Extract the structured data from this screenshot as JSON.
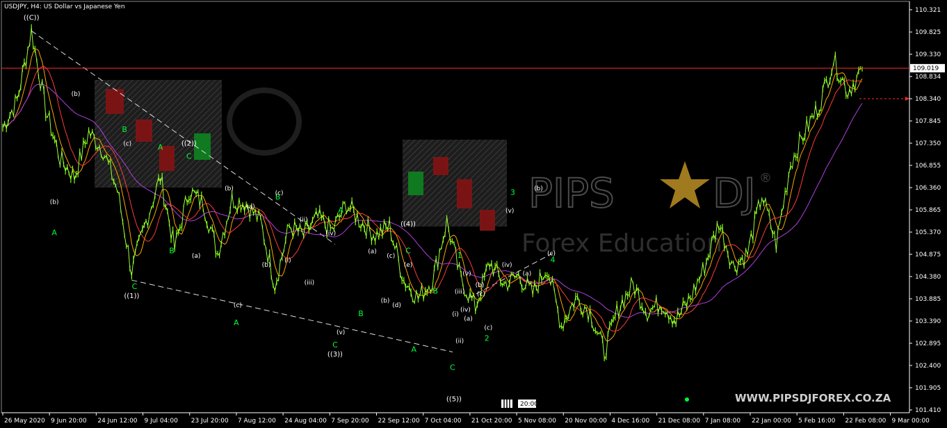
{
  "chart_title": "USDJPY, H4:  US Dollar vs Japanese Yen",
  "watermark": {
    "brand_left": "PIPS",
    "brand_right": "DJ",
    "subtitle": "Forex Education",
    "registered": "®"
  },
  "website": "WWW.PIPSDJFOREX.CO.ZA",
  "time_marker": "20:00",
  "colors": {
    "background": "#000000",
    "candles": "#7fff00",
    "ma_fast": "#ffa500",
    "ma_slow": "#ff3b3b",
    "ma_long": "#b040e0",
    "price_line": "#ff2a2a",
    "wave_green": "#00ff33",
    "axis": "#ffffff"
  },
  "chart_data": {
    "type": "line",
    "symbol": "USDJPY",
    "timeframe": "H4",
    "ylim": [
      101.2,
      110.5
    ],
    "price_ticks": [
      "110.321",
      "109.825",
      "109.330",
      "108.834",
      "108.340",
      "107.845",
      "107.350",
      "106.855",
      "106.360",
      "105.865",
      "105.370",
      "104.875",
      "104.380",
      "103.885",
      "103.390",
      "102.895",
      "102.400",
      "101.905",
      "101.410"
    ],
    "date_labels": [
      "26 May 2020",
      "9 Jun 20:00",
      "24 Jun 12:00",
      "9 Jul 04:00",
      "23 Jul 20:00",
      "7 Aug 12:00",
      "24 Aug 04:00",
      "7 Sep 20:00",
      "22 Sep 12:00",
      "7 Oct 04:00",
      "21 Oct 20:00",
      "5 Nov 08:00",
      "20 Nov 00:00",
      "4 Dec 16:00",
      "21 Dec 08:00",
      "7 Jan 08:00",
      "22 Jan 00:00",
      "5 Feb 16:00",
      "22 Feb 08:00",
      "9 Mar 00:00"
    ],
    "current_price": "109.019",
    "price_series": [
      [
        0,
        107.7
      ],
      [
        1,
        108.3
      ],
      [
        2,
        109.85
      ],
      [
        3,
        108.1
      ],
      [
        4,
        107.0
      ],
      [
        5,
        106.6
      ],
      [
        6,
        107.6
      ],
      [
        7,
        107.2
      ],
      [
        8,
        106.3
      ],
      [
        9,
        104.5
      ],
      [
        10,
        105.6
      ],
      [
        11,
        106.6
      ],
      [
        12,
        105.0
      ],
      [
        13,
        106.3
      ],
      [
        14,
        106.0
      ],
      [
        15,
        104.9
      ],
      [
        16,
        106.1
      ],
      [
        17,
        106.0
      ],
      [
        18,
        105.6
      ],
      [
        19,
        104.2
      ],
      [
        20,
        105.5
      ],
      [
        21,
        105.3
      ],
      [
        22,
        105.7
      ],
      [
        23,
        105.4
      ],
      [
        24,
        106.0
      ],
      [
        25,
        105.6
      ],
      [
        26,
        105.3
      ],
      [
        27,
        105.5
      ],
      [
        28,
        104.3
      ],
      [
        29,
        103.9
      ],
      [
        30,
        104.3
      ],
      [
        31,
        105.6
      ],
      [
        32,
        104.3
      ],
      [
        33,
        103.7
      ],
      [
        34,
        104.7
      ],
      [
        35,
        104.2
      ],
      [
        36,
        104.4
      ],
      [
        37,
        104.0
      ],
      [
        38,
        104.6
      ],
      [
        39,
        103.3
      ],
      [
        40,
        103.9
      ],
      [
        41,
        103.6
      ],
      [
        42,
        102.7
      ],
      [
        43,
        103.7
      ],
      [
        44,
        104.2
      ],
      [
        45,
        103.6
      ],
      [
        46,
        103.8
      ],
      [
        47,
        103.4
      ],
      [
        48,
        103.9
      ],
      [
        49,
        104.6
      ],
      [
        50,
        105.6
      ],
      [
        51,
        104.6
      ],
      [
        52,
        104.9
      ],
      [
        53,
        106.2
      ],
      [
        54,
        105.1
      ],
      [
        55,
        106.9
      ],
      [
        56,
        107.6
      ],
      [
        57,
        108.2
      ],
      [
        58,
        109.2
      ],
      [
        59,
        108.5
      ],
      [
        60,
        109.0
      ]
    ],
    "wave_labels": [
      {
        "text": "((C))",
        "kind": "white",
        "time": 2,
        "price": 110.1
      },
      {
        "text": "((1))",
        "kind": "white",
        "time": 9,
        "price": 103.9
      },
      {
        "text": "((2))",
        "kind": "white",
        "time": 13,
        "price": 107.3
      },
      {
        "text": "((3))",
        "kind": "white",
        "time": 23.2,
        "price": 102.6
      },
      {
        "text": "((4))",
        "kind": "white",
        "time": 28.3,
        "price": 105.5
      },
      {
        "text": "((5))",
        "kind": "white",
        "time": 31.5,
        "price": 101.6
      },
      {
        "text": "A",
        "kind": "green",
        "time": 3.6,
        "price": 105.3
      },
      {
        "text": "B",
        "kind": "green",
        "time": 8.5,
        "price": 107.6
      },
      {
        "text": "C",
        "kind": "green",
        "time": 9.2,
        "price": 104.1
      },
      {
        "text": "A",
        "kind": "green",
        "time": 11,
        "price": 107.2
      },
      {
        "text": "B",
        "kind": "green",
        "time": 11.8,
        "price": 104.9
      },
      {
        "text": "C",
        "kind": "green",
        "time": 13,
        "price": 107.0
      },
      {
        "text": "A",
        "kind": "green",
        "time": 16.3,
        "price": 103.3
      },
      {
        "text": "B",
        "kind": "green",
        "time": 19.2,
        "price": 106.1
      },
      {
        "text": "C",
        "kind": "green",
        "time": 23.2,
        "price": 102.8
      },
      {
        "text": "A",
        "kind": "green",
        "time": 23.6,
        "price": 105.8
      },
      {
        "text": "B",
        "kind": "green",
        "time": 25,
        "price": 103.5
      },
      {
        "text": "C",
        "kind": "green",
        "time": 28.3,
        "price": 104.9
      },
      {
        "text": "A",
        "kind": "green",
        "time": 28.7,
        "price": 102.7
      },
      {
        "text": "B",
        "kind": "green",
        "time": 30.2,
        "price": 104.0
      },
      {
        "text": "C",
        "kind": "green",
        "time": 31.4,
        "price": 102.3
      },
      {
        "text": "1",
        "kind": "green",
        "time": 31.9,
        "price": 104.8
      },
      {
        "text": "2",
        "kind": "green",
        "time": 33.8,
        "price": 102.95
      },
      {
        "text": "3",
        "kind": "green",
        "time": 35.6,
        "price": 106.2
      },
      {
        "text": "4",
        "kind": "green",
        "time": 38.4,
        "price": 104.7
      },
      {
        "text": "(b)",
        "kind": "small",
        "time": 3.6,
        "price": 106.0
      },
      {
        "text": "(b)",
        "kind": "small",
        "time": 5.1,
        "price": 108.4
      },
      {
        "text": "(c)",
        "kind": "small",
        "time": 8.7,
        "price": 107.3
      },
      {
        "text": "(a)",
        "kind": "small",
        "time": 13.5,
        "price": 104.8
      },
      {
        "text": "(b)",
        "kind": "small",
        "time": 15.8,
        "price": 106.3
      },
      {
        "text": "(a)",
        "kind": "small",
        "time": 17.3,
        "price": 105.9
      },
      {
        "text": "(c)",
        "kind": "small",
        "time": 16.4,
        "price": 103.7
      },
      {
        "text": "(b)",
        "kind": "small",
        "time": 18.4,
        "price": 104.6
      },
      {
        "text": "(c)",
        "kind": "small",
        "time": 19.3,
        "price": 106.2
      },
      {
        "text": "(i)",
        "kind": "small",
        "time": 19.9,
        "price": 104.7
      },
      {
        "text": "(ii)",
        "kind": "small",
        "time": 21.0,
        "price": 105.6
      },
      {
        "text": "(iii)",
        "kind": "small",
        "time": 21.4,
        "price": 104.2
      },
      {
        "text": "(iv)",
        "kind": "small",
        "time": 22.9,
        "price": 105.3
      },
      {
        "text": "(v)",
        "kind": "small",
        "time": 23.6,
        "price": 103.1
      },
      {
        "text": "(a)",
        "kind": "small",
        "time": 25.8,
        "price": 104.9
      },
      {
        "text": "(b)",
        "kind": "small",
        "time": 26.7,
        "price": 103.8
      },
      {
        "text": "(c)",
        "kind": "small",
        "time": 27.1,
        "price": 104.8
      },
      {
        "text": "(d)",
        "kind": "small",
        "time": 27.5,
        "price": 103.7
      },
      {
        "text": "(e)",
        "kind": "small",
        "time": 28.3,
        "price": 104.6
      },
      {
        "text": "(i)",
        "kind": "small",
        "time": 31.6,
        "price": 103.5
      },
      {
        "text": "(ii)",
        "kind": "small",
        "time": 31.9,
        "price": 102.9
      },
      {
        "text": "(iii)",
        "kind": "small",
        "time": 31.9,
        "price": 104.0
      },
      {
        "text": "(iv)",
        "kind": "small",
        "time": 32.3,
        "price": 103.6
      },
      {
        "text": "(v)",
        "kind": "small",
        "time": 32.4,
        "price": 104.4
      },
      {
        "text": "(a)",
        "kind": "small",
        "time": 32.5,
        "price": 103.4
      },
      {
        "text": "(b)",
        "kind": "small",
        "time": 33.3,
        "price": 104.15
      },
      {
        "text": "(c)",
        "kind": "small",
        "time": 33.4,
        "price": 103.95
      },
      {
        "text": "(c)",
        "kind": "small",
        "time": 33.9,
        "price": 103.2
      },
      {
        "text": "(iv)",
        "kind": "small",
        "time": 35.2,
        "price": 104.6
      },
      {
        "text": "(v)",
        "kind": "small",
        "time": 35.4,
        "price": 105.8
      },
      {
        "text": "(a)",
        "kind": "small",
        "time": 36.6,
        "price": 104.4
      },
      {
        "text": "(b)",
        "kind": "small",
        "time": 37.4,
        "price": 106.3
      },
      {
        "text": "(c)",
        "kind": "small",
        "time": 38.3,
        "price": 104.85
      }
    ]
  }
}
